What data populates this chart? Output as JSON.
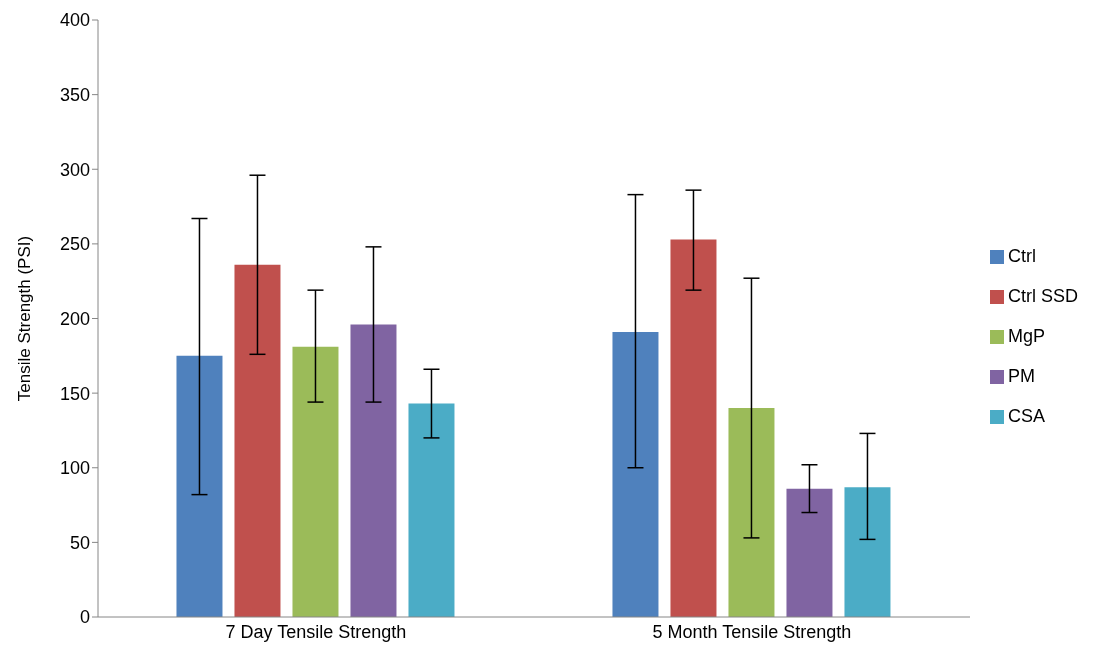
{
  "chart_data": {
    "type": "bar",
    "ylabel": "Tensile Strength (PSI)",
    "categories": [
      "7 Day Tensile Strength",
      "5 Month Tensile Strength"
    ],
    "series": [
      {
        "name": "Ctrl",
        "color": "#4f81bd",
        "values": [
          175,
          191
        ],
        "errors": [
          [
            82,
            267
          ],
          [
            100,
            283
          ]
        ]
      },
      {
        "name": "Ctrl SSD",
        "color": "#c0504d",
        "values": [
          236,
          253
        ],
        "errors": [
          [
            176,
            296
          ],
          [
            219,
            286
          ]
        ]
      },
      {
        "name": "MgP",
        "color": "#9bbb59",
        "values": [
          181,
          140
        ],
        "errors": [
          [
            144,
            219
          ],
          [
            53,
            227
          ]
        ]
      },
      {
        "name": "PM",
        "color": "#8064a2",
        "values": [
          196,
          86
        ],
        "errors": [
          [
            144,
            248
          ],
          [
            70,
            102
          ]
        ]
      },
      {
        "name": "CSA",
        "color": "#4bacc6",
        "values": [
          143,
          87
        ],
        "errors": [
          [
            120,
            166
          ],
          [
            52,
            123
          ]
        ]
      }
    ],
    "ylim": [
      0,
      400
    ],
    "yticks": [
      0,
      50,
      100,
      150,
      200,
      250,
      300,
      350,
      400
    ],
    "grid": false,
    "legend": "right"
  }
}
